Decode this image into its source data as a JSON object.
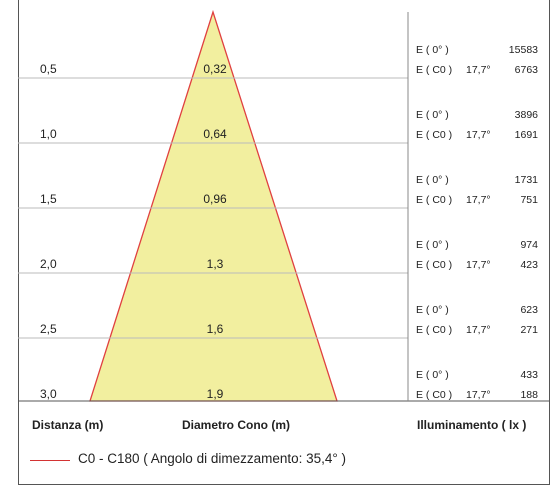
{
  "rows": [
    {
      "distance": "0,5",
      "diameter": "0,32",
      "e0_label": "E ( 0° )",
      "e0_value": "15583",
      "ec0_label": "E ( C0 )",
      "angle": "17,7°",
      "ec0_value": "6763"
    },
    {
      "distance": "1,0",
      "diameter": "0,64",
      "e0_label": "E ( 0° )",
      "e0_value": "3896",
      "ec0_label": "E ( C0 )",
      "angle": "17,7°",
      "ec0_value": "1691"
    },
    {
      "distance": "1,5",
      "diameter": "0,96",
      "e0_label": "E ( 0° )",
      "e0_value": "1731",
      "ec0_label": "E ( C0 )",
      "angle": "17,7°",
      "ec0_value": "751"
    },
    {
      "distance": "2,0",
      "diameter": "1,3",
      "e0_label": "E ( 0° )",
      "e0_value": "974",
      "ec0_label": "E ( C0 )",
      "angle": "17,7°",
      "ec0_value": "423"
    },
    {
      "distance": "2,5",
      "diameter": "1,6",
      "e0_label": "E ( 0° )",
      "e0_value": "623",
      "ec0_label": "E ( C0 )",
      "angle": "17,7°",
      "ec0_value": "271"
    },
    {
      "distance": "3,0",
      "diameter": "1,9",
      "e0_label": "E ( 0° )",
      "e0_value": "433",
      "ec0_label": "E ( C0 )",
      "angle": "17,7°",
      "ec0_value": "188"
    }
  ],
  "footer": {
    "distance_label": "Distanza (m)",
    "diameter_label": "Diametro Cono (m)",
    "illuminance_label": "Illuminamento ( lx )"
  },
  "legend": {
    "text": "C0 - C180  ( Angolo di dimezzamento: 35,4° )",
    "color": "#d33333"
  },
  "colors": {
    "cone_fill": "#f2ef9f",
    "cone_stroke": "#e04040",
    "grid": "#bbbbbb"
  }
}
